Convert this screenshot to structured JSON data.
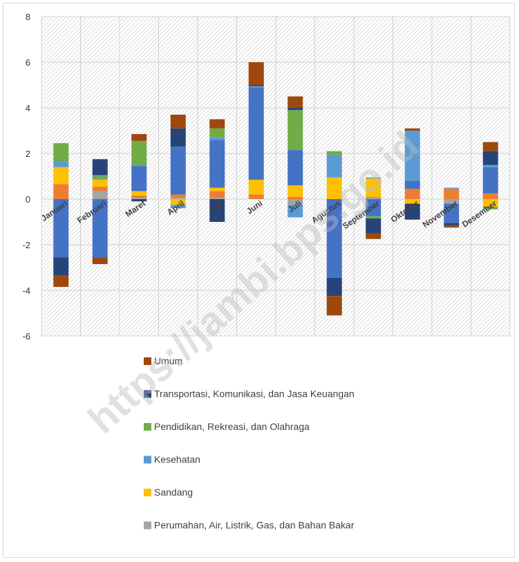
{
  "chart_data": {
    "type": "bar",
    "stacked": true,
    "categories": [
      "Januari",
      "Februari",
      "Maret",
      "April",
      "Mei",
      "Juni",
      "Juli",
      "Agustus",
      "September",
      "Oktober",
      "November",
      "Desember"
    ],
    "ylim": [
      -6,
      8
    ],
    "yticks": [
      "8",
      "6",
      "4",
      "2",
      "0",
      "-2",
      "-4",
      "-6"
    ],
    "grid": "vertical-and-horizontal with diagonal hatch background",
    "legend_position": "bottom",
    "series": [
      {
        "name": "Perumahan, Air, Listrik, Gas, dan Bahan Bakar",
        "color": "#a5a5a5",
        "values": [
          0,
          0.35,
          0.05,
          0.05,
          0.05,
          0,
          -0.25,
          0,
          0.05,
          0,
          -0.2,
          0
        ]
      },
      {
        "name": null,
        "color": "#ed7d31",
        "values": [
          0.65,
          0.2,
          0.1,
          0.15,
          0.3,
          0.2,
          0.1,
          0,
          0.05,
          0.45,
          0.45,
          0.25
        ]
      },
      {
        "name": "Sandang",
        "color": "#ffc000",
        "values": [
          0.75,
          0.3,
          0.2,
          -0.25,
          0.15,
          0.65,
          0.5,
          0.95,
          0.8,
          -0.2,
          0,
          -0.35
        ]
      },
      {
        "name": null,
        "color": "#4472c4",
        "values": [
          -2.55,
          -2.55,
          1.1,
          2.1,
          2.1,
          4.05,
          1.55,
          -3.45,
          -0.75,
          0.35,
          -0.85,
          1.15
        ]
      },
      {
        "name": "Kesehatan",
        "color": "#5b9bd5",
        "values": [
          0.25,
          0.05,
          0.05,
          -0.15,
          0.1,
          0.05,
          -0.55,
          1.0,
          0.05,
          2.2,
          0.05,
          0.1
        ]
      },
      {
        "name": "Pendidikan, Rekreasi, dan Olahraga",
        "color": "#70ad47",
        "values": [
          0.8,
          0.15,
          1.05,
          0,
          0.4,
          0,
          1.75,
          0.15,
          -0.1,
          0,
          0,
          -0.1
        ]
      },
      {
        "name": "Transportasi, Komunikasi, dan Jasa Keuangan",
        "color": "#264478",
        "values": [
          -0.8,
          0.7,
          -0.1,
          0.8,
          -1.0,
          0.05,
          0.1,
          -0.8,
          -0.65,
          -0.7,
          -0.1,
          0.6
        ]
      },
      {
        "name": "Umum",
        "color": "#9e480e",
        "values": [
          -0.5,
          -0.3,
          0.3,
          0.6,
          0.4,
          1.0,
          0.5,
          -0.85,
          -0.25,
          0.1,
          -0.1,
          0.4
        ]
      }
    ],
    "legend": [
      {
        "label": "Umum",
        "color": "#9e480e"
      },
      {
        "label": "Transportasi, Komunikasi, dan Jasa Keuangan",
        "color": "#264478"
      },
      {
        "label": "Pendidikan, Rekreasi, dan Olahraga",
        "color": "#70ad47"
      },
      {
        "label": "Kesehatan",
        "color": "#5b9bd5"
      },
      {
        "label": "Sandang",
        "color": "#ffc000"
      },
      {
        "label": "Perumahan, Air, Listrik, Gas, dan Bahan Bakar",
        "color": "#a5a5a5"
      }
    ]
  },
  "watermark": "https://jambi.bps.go.id"
}
